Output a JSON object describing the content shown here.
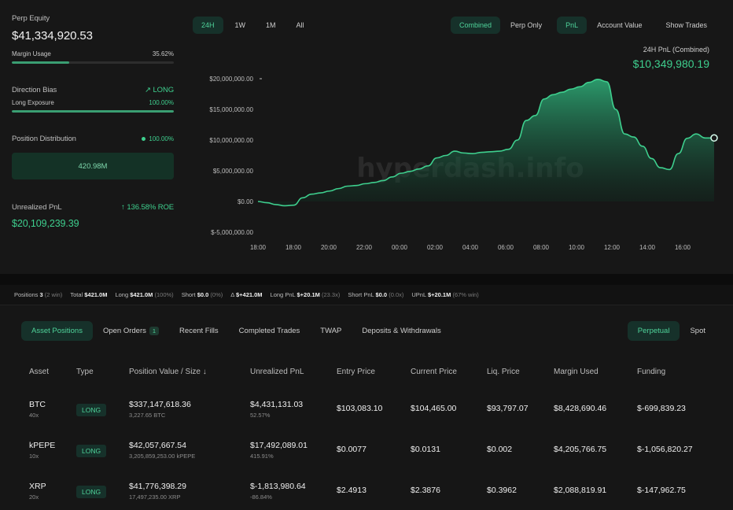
{
  "left_panel": {
    "perp_equity_label": "Perp Equity",
    "perp_equity_value": "$41,334,920.53",
    "margin_usage_label": "Margin Usage",
    "margin_usage_value": "35.62%",
    "margin_usage_fraction": 0.3562,
    "direction_bias_label": "Direction Bias",
    "direction_bias_value": "LONG",
    "long_exposure_label": "Long Exposure",
    "long_exposure_value": "100.00%",
    "long_exposure_fraction": 1.0,
    "position_distribution_label": "Position Distribution",
    "position_distribution_value": "100.00%",
    "distribution_box": "420.98M",
    "unrealized_pnl_label": "Unrealized PnL",
    "roe_value": "136.58% ROE",
    "unrealized_pnl_value": "$20,109,239.39"
  },
  "timeframes": [
    "24H",
    "1W",
    "1M",
    "All"
  ],
  "right_toggles": [
    "Combined",
    "Perp Only",
    "PnL",
    "Account Value",
    "Show Trades"
  ],
  "pnl_title": "24H PnL (Combined)",
  "pnl_value": "$10,349,980.19",
  "watermark": "hyperdash.info",
  "chart_data": {
    "type": "area",
    "x": [
      "18:00",
      "18:30",
      "19:00",
      "19:30",
      "20:00",
      "20:30",
      "21:00",
      "21:30",
      "22:00",
      "22:30",
      "23:00",
      "23:30",
      "00:00",
      "00:30",
      "01:00",
      "01:30",
      "02:00",
      "02:30",
      "03:00",
      "03:30",
      "04:00",
      "04:30",
      "05:00",
      "05:30",
      "06:00",
      "06:30",
      "07:00",
      "07:30",
      "08:00",
      "08:30",
      "09:00",
      "09:30",
      "10:00",
      "10:15",
      "10:30",
      "10:45",
      "11:00",
      "11:30",
      "12:00",
      "12:30",
      "13:00",
      "13:15",
      "13:30",
      "13:45",
      "14:00",
      "14:30",
      "15:00",
      "15:30",
      "16:00",
      "16:30",
      "17:00",
      "17:30"
    ],
    "values": [
      0,
      -200000,
      -500000,
      -700000,
      -600000,
      600000,
      1200000,
      1400000,
      1700000,
      2100000,
      2500000,
      2600000,
      2900000,
      3100000,
      3400000,
      4000000,
      4600000,
      4900000,
      5300000,
      5800000,
      7100000,
      7500000,
      8200000,
      7900000,
      7800000,
      8000000,
      8100000,
      8200000,
      8500000,
      10000000,
      13200000,
      14000000,
      16700000,
      17400000,
      17800000,
      18300000,
      18700000,
      19400000,
      19900000,
      19500000,
      15000000,
      11000000,
      10500000,
      9000000,
      7000000,
      5500000,
      5200000,
      7800000,
      10300000,
      11000000,
      10350000,
      10349980
    ],
    "yticks": [
      "$20,000,000.00",
      "$15,000,000.00",
      "$10,000,000.00",
      "$5,000,000.00",
      "$0.00",
      "$-5,000,000.00"
    ],
    "ytick_values": [
      20000000,
      15000000,
      10000000,
      5000000,
      0,
      -5000000
    ],
    "xticks": [
      "18:00",
      "18:00",
      "20:00",
      "22:00",
      "00:00",
      "02:00",
      "04:00",
      "06:00",
      "08:00",
      "10:00",
      "12:00",
      "14:00",
      "16:00"
    ],
    "ylim": [
      -5000000,
      20000000
    ],
    "color": "#3ecf8e",
    "grid": false
  },
  "stats": {
    "positions_label": "Positions",
    "positions_value": "3",
    "positions_sub": "(2 win)",
    "total_label": "Total",
    "total_value": "$421.0M",
    "long_label": "Long",
    "long_value": "$421.0M",
    "long_sub": "(100%)",
    "short_label": "Short",
    "short_value": "$0.0",
    "short_sub": "(0%)",
    "delta_label": "Δ",
    "delta_value": "$+421.0M",
    "long_pnl_label": "Long PnL",
    "long_pnl_value": "$+20.1M",
    "long_pnl_sub": "(23.3x)",
    "short_pnl_label": "Short PnL",
    "short_pnl_value": "$0.0",
    "short_pnl_sub": "(0.0x)",
    "upnl_label": "UPnL",
    "upnl_value": "$+20.1M",
    "upnl_sub": "(67% win)"
  },
  "tabs": {
    "asset_positions": "Asset Positions",
    "open_orders": "Open Orders",
    "open_orders_count": "1",
    "recent_fills": "Recent Fills",
    "completed_trades": "Completed Trades",
    "twap": "TWAP",
    "deposits_withdrawals": "Deposits & Withdrawals",
    "perpetual": "Perpetual",
    "spot": "Spot"
  },
  "table": {
    "headers": [
      "Asset",
      "Type",
      "Position Value / Size ↓",
      "Unrealized PnL",
      "Entry Price",
      "Current Price",
      "Liq. Price",
      "Margin Used",
      "Funding"
    ],
    "rows": [
      {
        "asset": "BTC",
        "lev": "40x",
        "type": "LONG",
        "value": "$337,147,618.36",
        "size": "3,227.65 BTC",
        "pnl": "$4,431,131.03",
        "pnl_pct": "52.57%",
        "entry": "$103,083.10",
        "current": "$104,465.00",
        "liq": "$93,797.07",
        "margin": "$8,428,690.46",
        "funding": "$-699,839.23"
      },
      {
        "asset": "kPEPE",
        "lev": "10x",
        "type": "LONG",
        "value": "$42,057,667.54",
        "size": "3,205,859,253.00 kPEPE",
        "pnl": "$17,492,089.01",
        "pnl_pct": "415.91%",
        "entry": "$0.0077",
        "current": "$0.0131",
        "liq": "$0.002",
        "margin": "$4,205,766.75",
        "funding": "$-1,056,820.27"
      },
      {
        "asset": "XRP",
        "lev": "20x",
        "type": "LONG",
        "value": "$41,776,398.29",
        "size": "17,497,235.00 XRP",
        "pnl": "$-1,813,980.64",
        "pnl_pct": "-86.84%",
        "entry": "$2.4913",
        "current": "$2.3876",
        "liq": "$0.3962",
        "margin": "$2,088,819.91",
        "funding": "$-147,962.75"
      }
    ]
  }
}
